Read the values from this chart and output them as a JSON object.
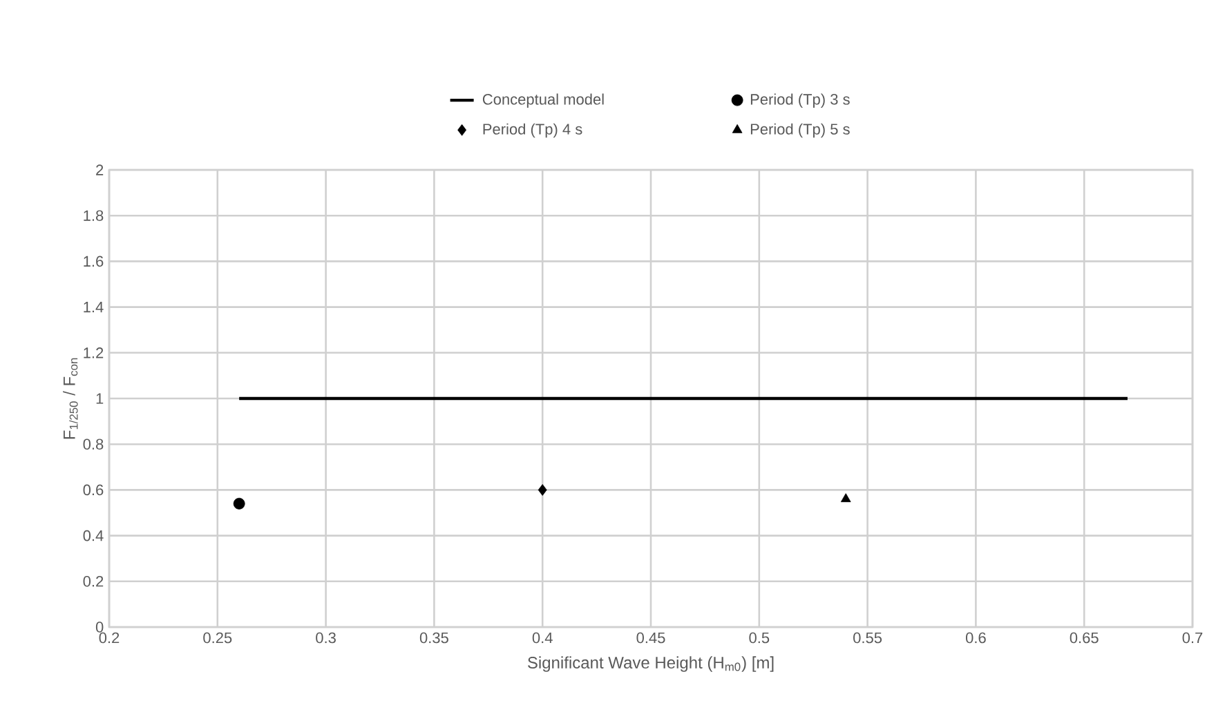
{
  "chart_data": {
    "type": "scatter",
    "xlabel": "Significant Wave Height (H$_{m0}$) [m]",
    "ylabel": "F$_{1/250}$ / F$_{con}$",
    "xlim": [
      0.2,
      0.7
    ],
    "xticks": [
      0.2,
      0.25,
      0.3,
      0.35,
      0.4,
      0.45,
      0.5,
      0.55,
      0.6,
      0.65,
      0.7
    ],
    "ylim": [
      0,
      2
    ],
    "yticks": [
      0,
      0.2,
      0.4,
      0.6,
      0.8,
      1,
      1.2,
      1.4,
      1.6,
      1.8,
      2
    ],
    "grid": true,
    "legend": "top",
    "series": [
      {
        "name": "Conceptual model",
        "type": "line",
        "color": "#000000",
        "marker": "none",
        "x": [
          0.26,
          0.67
        ],
        "values": [
          1,
          1
        ]
      },
      {
        "name": "Period (Tp) 3 s",
        "color": "#000000",
        "marker": "circle",
        "x": [
          0.26
        ],
        "values": [
          0.54
        ]
      },
      {
        "name": "Period (Tp) 4 s",
        "color": "#000000",
        "marker": "diamond",
        "x": [
          0.4
        ],
        "values": [
          0.6
        ]
      },
      {
        "name": "Period (Tp) 5 s",
        "color": "#000000",
        "marker": "triangle",
        "x": [
          0.54
        ],
        "values": [
          0.56
        ]
      }
    ]
  }
}
